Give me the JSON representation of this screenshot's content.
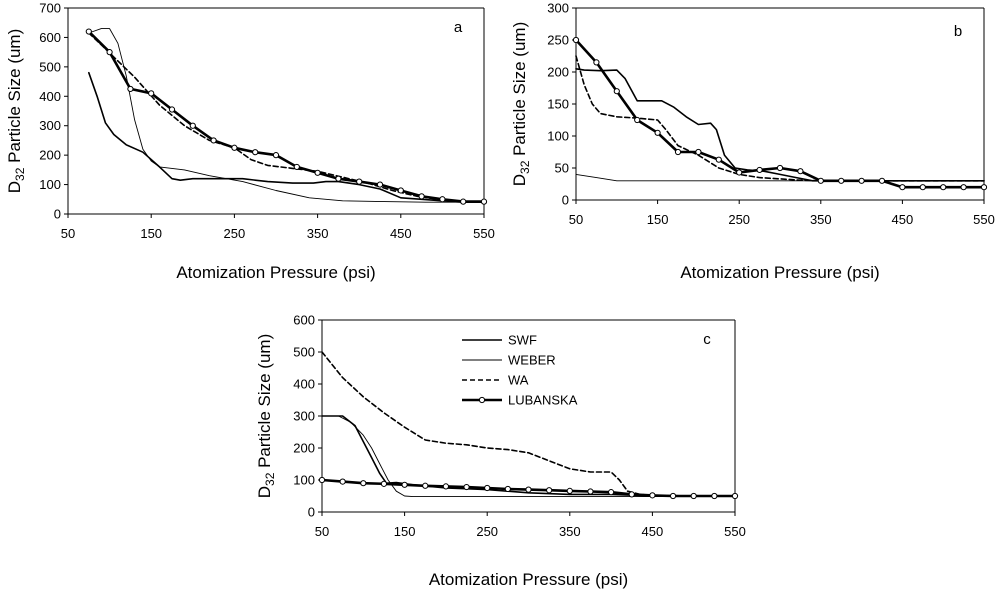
{
  "chart_data": [
    {
      "type": "line",
      "panel_label": "a",
      "xlabel": "Atomization Pressure (psi)",
      "ylabel": {
        "prefix": "D",
        "sub": "32",
        "suffix": " Particle Size (um)"
      },
      "xlim": [
        50,
        550
      ],
      "ylim": [
        0,
        700
      ],
      "x_ticks": [
        50,
        150,
        250,
        350,
        450,
        550
      ],
      "y_ticks": [
        0,
        100,
        200,
        300,
        400,
        500,
        600,
        700
      ],
      "legend": false,
      "series": [
        {
          "style": "swf",
          "points": [
            [
              75,
              480
            ],
            [
              85,
              400
            ],
            [
              95,
              310
            ],
            [
              105,
              270
            ],
            [
              120,
              235
            ],
            [
              140,
              210
            ],
            [
              160,
              160
            ],
            [
              175,
              120
            ],
            [
              185,
              115
            ],
            [
              200,
              120
            ],
            [
              230,
              120
            ],
            [
              260,
              120
            ],
            [
              290,
              110
            ],
            [
              320,
              105
            ],
            [
              345,
              105
            ],
            [
              360,
              110
            ],
            [
              375,
              110
            ],
            [
              400,
              100
            ],
            [
              425,
              85
            ],
            [
              450,
              55
            ],
            [
              500,
              45
            ],
            [
              525,
              40
            ],
            [
              550,
              40
            ]
          ]
        },
        {
          "style": "weber",
          "points": [
            [
              75,
              615
            ],
            [
              90,
              630
            ],
            [
              100,
              630
            ],
            [
              110,
              580
            ],
            [
              120,
              470
            ],
            [
              130,
              320
            ],
            [
              140,
              220
            ],
            [
              150,
              180
            ],
            [
              160,
              160
            ],
            [
              190,
              150
            ],
            [
              220,
              130
            ],
            [
              260,
              110
            ],
            [
              300,
              80
            ],
            [
              340,
              55
            ],
            [
              380,
              45
            ],
            [
              430,
              42
            ],
            [
              480,
              40
            ],
            [
              550,
              40
            ]
          ]
        },
        {
          "style": "wa",
          "points": [
            [
              75,
              615
            ],
            [
              90,
              575
            ],
            [
              110,
              520
            ],
            [
              130,
              465
            ],
            [
              160,
              370
            ],
            [
              190,
              300
            ],
            [
              220,
              250
            ],
            [
              250,
              225
            ],
            [
              270,
              185
            ],
            [
              290,
              165
            ],
            [
              320,
              155
            ],
            [
              350,
              145
            ],
            [
              380,
              125
            ],
            [
              410,
              105
            ],
            [
              440,
              80
            ],
            [
              470,
              60
            ],
            [
              500,
              48
            ],
            [
              530,
              40
            ],
            [
              550,
              40
            ]
          ]
        },
        {
          "style": "lubanska",
          "points": [
            [
              75,
              620
            ],
            [
              100,
              550
            ],
            [
              125,
              425
            ],
            [
              150,
              410
            ],
            [
              175,
              355
            ],
            [
              200,
              300
            ],
            [
              225,
              250
            ],
            [
              250,
              225
            ],
            [
              275,
              210
            ],
            [
              300,
              200
            ],
            [
              325,
              160
            ],
            [
              350,
              140
            ],
            [
              375,
              120
            ],
            [
              400,
              110
            ],
            [
              425,
              100
            ],
            [
              450,
              80
            ],
            [
              475,
              60
            ],
            [
              500,
              50
            ],
            [
              525,
              42
            ],
            [
              550,
              42
            ]
          ]
        }
      ]
    },
    {
      "type": "line",
      "panel_label": "b",
      "xlabel": "Atomization Pressure (psi)",
      "ylabel": {
        "prefix": "D",
        "sub": "32",
        "suffix": " Particle Size (um)"
      },
      "xlim": [
        50,
        550
      ],
      "ylim": [
        0,
        300
      ],
      "x_ticks": [
        50,
        150,
        250,
        350,
        450,
        550
      ],
      "y_ticks": [
        0,
        50,
        100,
        150,
        200,
        250,
        300
      ],
      "legend": false,
      "series": [
        {
          "style": "swf",
          "points": [
            [
              50,
              205
            ],
            [
              60,
              203
            ],
            [
              80,
              202
            ],
            [
              100,
              203
            ],
            [
              110,
              190
            ],
            [
              125,
              155
            ],
            [
              140,
              155
            ],
            [
              155,
              155
            ],
            [
              170,
              145
            ],
            [
              185,
              130
            ],
            [
              200,
              118
            ],
            [
              215,
              120
            ],
            [
              222,
              110
            ],
            [
              232,
              70
            ],
            [
              245,
              50
            ],
            [
              260,
              47
            ],
            [
              280,
              45
            ],
            [
              300,
              40
            ],
            [
              320,
              35
            ],
            [
              340,
              30
            ],
            [
              360,
              30
            ],
            [
              400,
              30
            ],
            [
              450,
              30
            ],
            [
              500,
              30
            ],
            [
              550,
              30
            ]
          ]
        },
        {
          "style": "weber",
          "points": [
            [
              50,
              40
            ],
            [
              75,
              35
            ],
            [
              100,
              30
            ],
            [
              150,
              30
            ],
            [
              250,
              30
            ],
            [
              350,
              30
            ],
            [
              450,
              30
            ],
            [
              550,
              30
            ]
          ]
        },
        {
          "style": "wa",
          "points": [
            [
              50,
              225
            ],
            [
              60,
              180
            ],
            [
              70,
              150
            ],
            [
              80,
              135
            ],
            [
              100,
              130
            ],
            [
              125,
              128
            ],
            [
              150,
              125
            ],
            [
              160,
              110
            ],
            [
              175,
              85
            ],
            [
              200,
              70
            ],
            [
              225,
              50
            ],
            [
              250,
              40
            ],
            [
              275,
              35
            ],
            [
              300,
              33
            ],
            [
              325,
              31
            ],
            [
              350,
              30
            ],
            [
              400,
              30
            ],
            [
              450,
              30
            ],
            [
              500,
              30
            ],
            [
              550,
              30
            ]
          ]
        },
        {
          "style": "lubanska",
          "points": [
            [
              50,
              250
            ],
            [
              75,
              215
            ],
            [
              100,
              170
            ],
            [
              125,
              125
            ],
            [
              150,
              105
            ],
            [
              175,
              75
            ],
            [
              200,
              75
            ],
            [
              225,
              63
            ],
            [
              250,
              43
            ],
            [
              275,
              47
            ],
            [
              300,
              50
            ],
            [
              325,
              45
            ],
            [
              350,
              30
            ],
            [
              375,
              30
            ],
            [
              400,
              30
            ],
            [
              425,
              30
            ],
            [
              450,
              20
            ],
            [
              475,
              20
            ],
            [
              500,
              20
            ],
            [
              525,
              20
            ],
            [
              550,
              20
            ]
          ]
        }
      ]
    },
    {
      "type": "line",
      "panel_label": "c",
      "xlabel": "Atomization Pressure (psi)",
      "ylabel": {
        "prefix": "D",
        "sub": "32",
        "suffix": " Particle Size (um)"
      },
      "xlim": [
        50,
        550
      ],
      "ylim": [
        0,
        600
      ],
      "x_ticks": [
        50,
        150,
        250,
        350,
        450,
        550
      ],
      "y_ticks": [
        0,
        100,
        200,
        300,
        400,
        500,
        600
      ],
      "legend": true,
      "series": [
        {
          "name": "SWF",
          "style": "swf",
          "points": [
            [
              50,
              300
            ],
            [
              75,
              300
            ],
            [
              90,
              270
            ],
            [
              100,
              220
            ],
            [
              110,
              170
            ],
            [
              120,
              120
            ],
            [
              128,
              90
            ],
            [
              140,
              92
            ],
            [
              160,
              85
            ],
            [
              200,
              75
            ],
            [
              250,
              70
            ],
            [
              300,
              60
            ],
            [
              350,
              55
            ],
            [
              400,
              55
            ],
            [
              450,
              50
            ],
            [
              500,
              50
            ],
            [
              550,
              50
            ]
          ]
        },
        {
          "name": "WEBER",
          "style": "weber",
          "points": [
            [
              50,
              300
            ],
            [
              70,
              300
            ],
            [
              85,
              280
            ],
            [
              100,
              240
            ],
            [
              110,
              200
            ],
            [
              120,
              150
            ],
            [
              130,
              100
            ],
            [
              140,
              65
            ],
            [
              150,
              50
            ],
            [
              160,
              48
            ],
            [
              200,
              48
            ],
            [
              300,
              48
            ],
            [
              400,
              48
            ],
            [
              550,
              48
            ]
          ]
        },
        {
          "name": "WA",
          "style": "wa",
          "points": [
            [
              50,
              500
            ],
            [
              75,
              420
            ],
            [
              100,
              360
            ],
            [
              125,
              310
            ],
            [
              150,
              265
            ],
            [
              175,
              225
            ],
            [
              200,
              215
            ],
            [
              225,
              210
            ],
            [
              250,
              200
            ],
            [
              275,
              195
            ],
            [
              300,
              185
            ],
            [
              325,
              160
            ],
            [
              350,
              135
            ],
            [
              375,
              125
            ],
            [
              400,
              125
            ],
            [
              410,
              100
            ],
            [
              420,
              65
            ],
            [
              435,
              55
            ],
            [
              450,
              52
            ],
            [
              500,
              50
            ],
            [
              550,
              50
            ]
          ]
        },
        {
          "name": "LUBANSKA",
          "style": "lubanska",
          "points": [
            [
              50,
              100
            ],
            [
              75,
              95
            ],
            [
              100,
              90
            ],
            [
              125,
              88
            ],
            [
              150,
              85
            ],
            [
              175,
              82
            ],
            [
              200,
              80
            ],
            [
              225,
              78
            ],
            [
              250,
              75
            ],
            [
              275,
              72
            ],
            [
              300,
              70
            ],
            [
              325,
              68
            ],
            [
              350,
              66
            ],
            [
              375,
              64
            ],
            [
              400,
              62
            ],
            [
              425,
              55
            ],
            [
              450,
              52
            ],
            [
              475,
              50
            ],
            [
              500,
              50
            ],
            [
              525,
              50
            ],
            [
              550,
              50
            ]
          ]
        }
      ]
    }
  ]
}
